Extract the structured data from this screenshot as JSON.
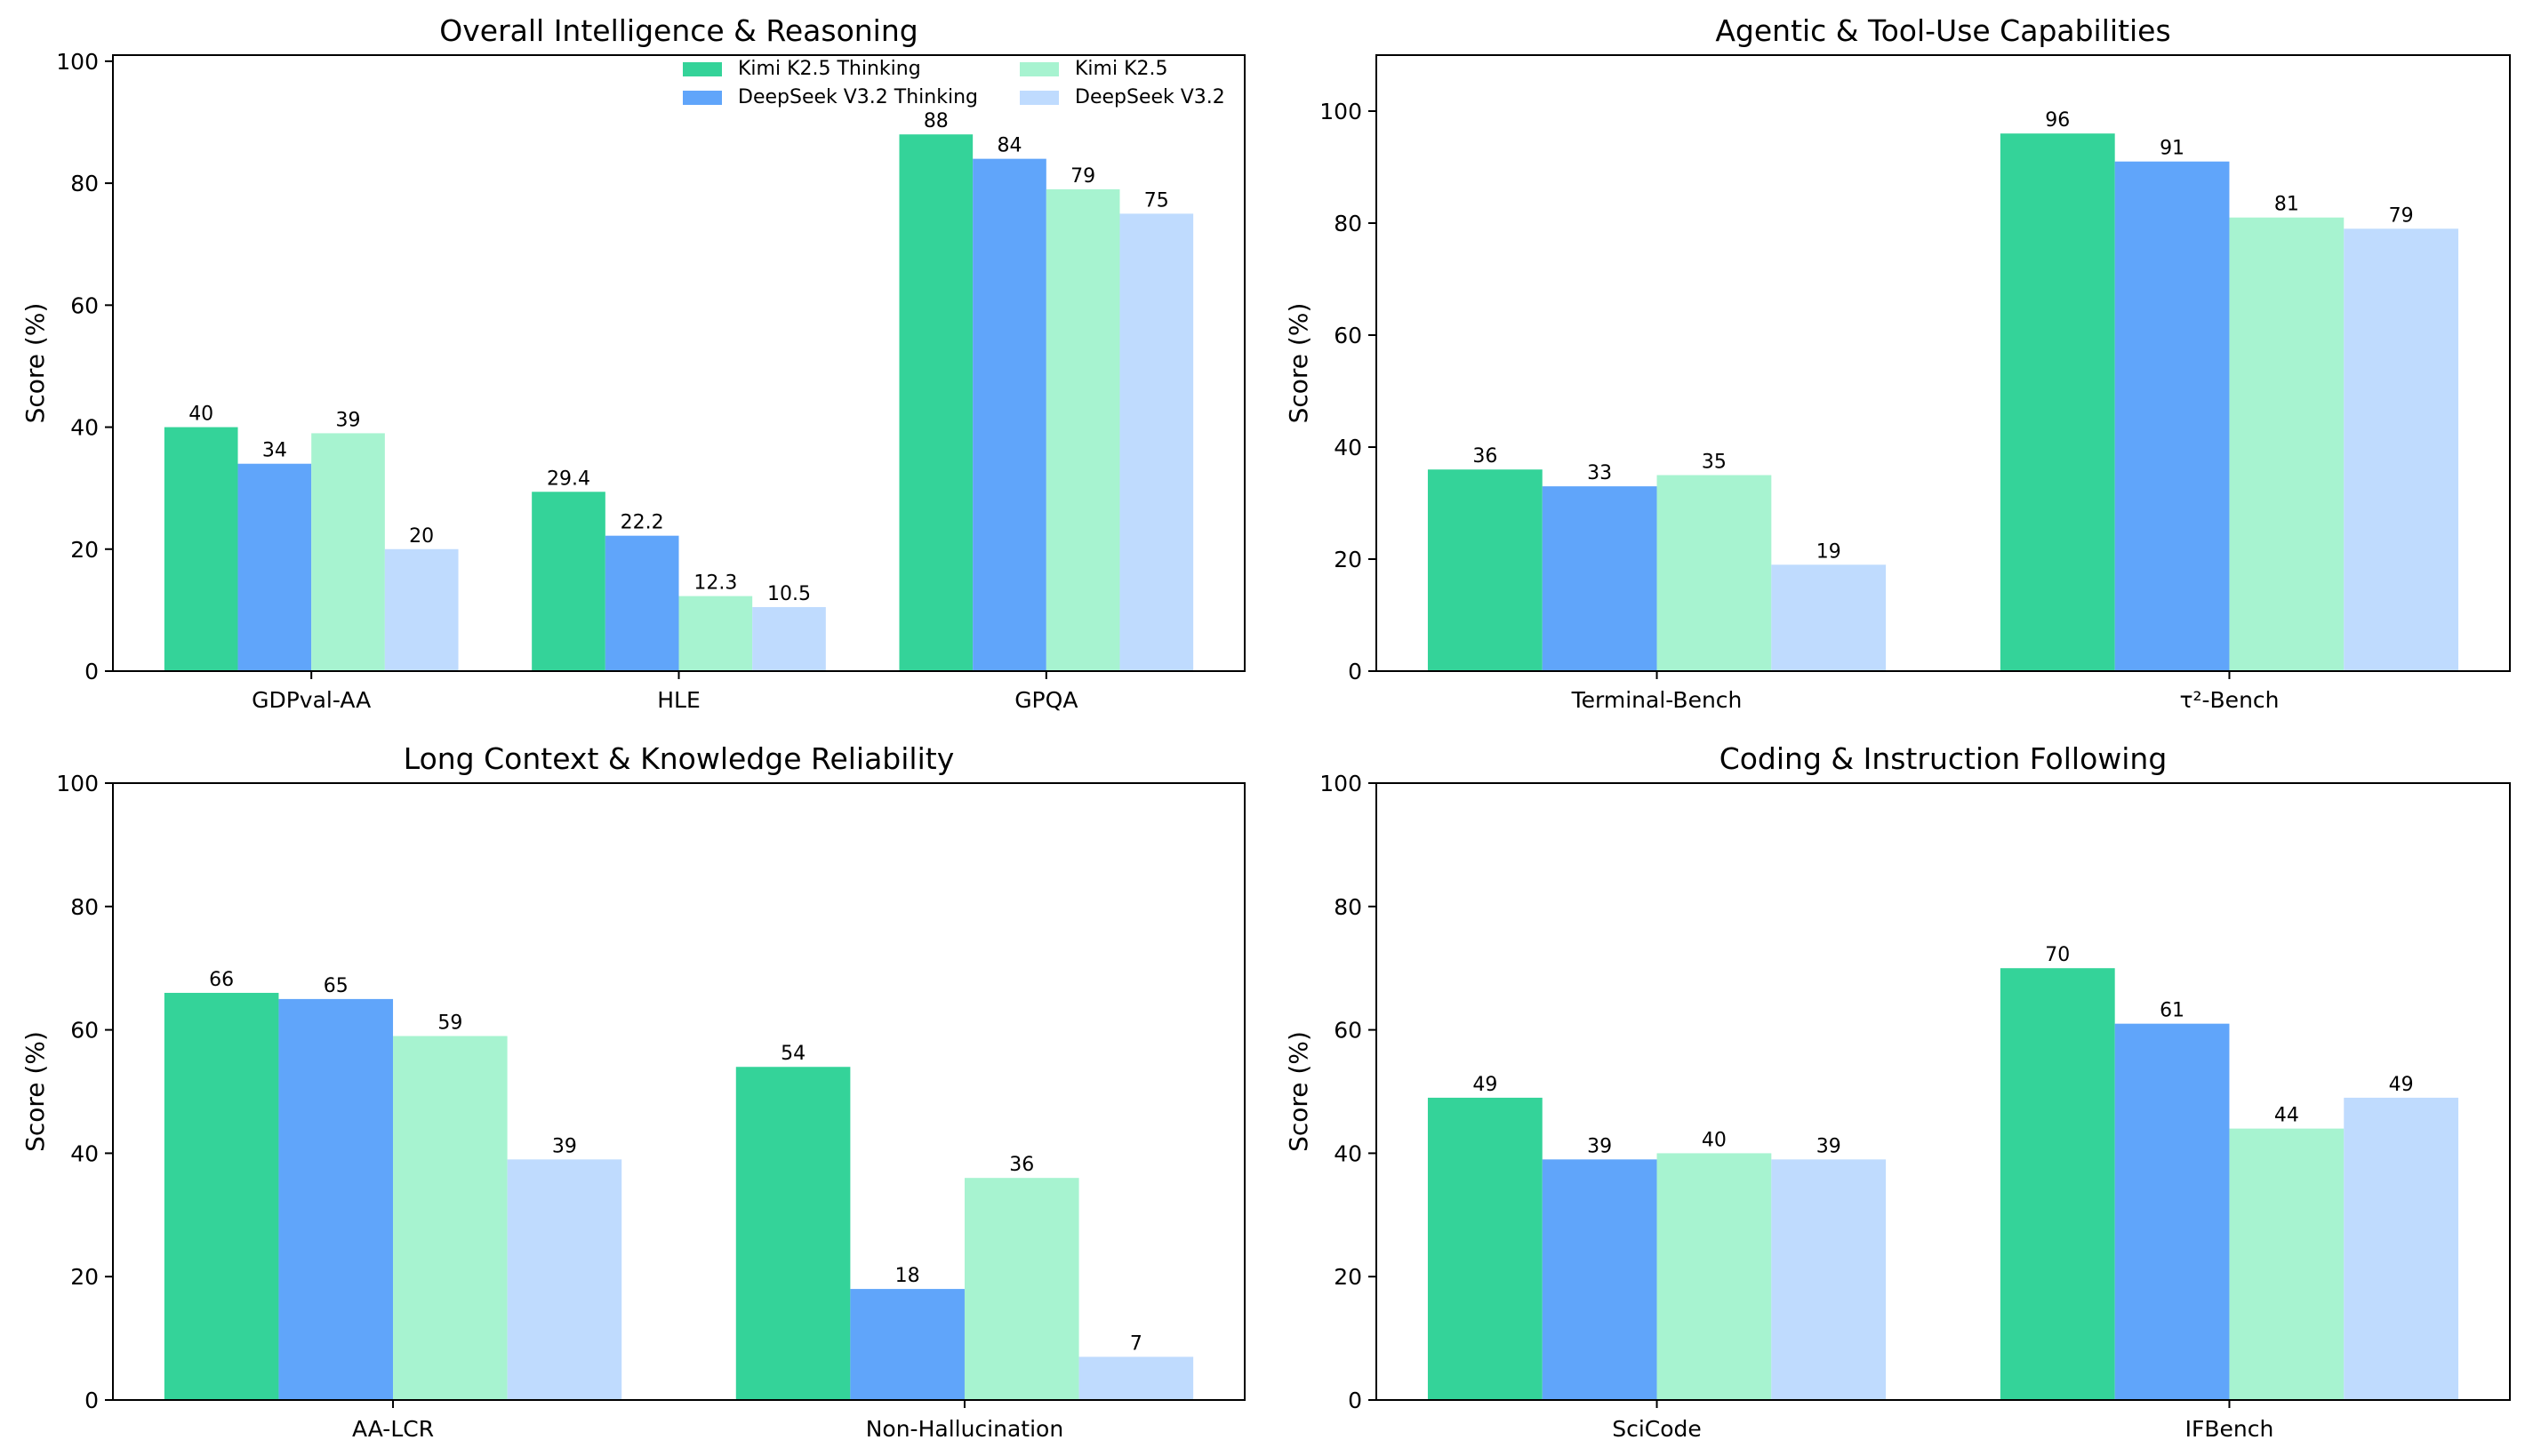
{
  "colors": {
    "kimi_thinking": "#34d399",
    "deepseek_thinking": "#60a5fa",
    "kimi": "#a7f3d0",
    "deepseek": "#bfdbfe"
  },
  "legend": [
    {
      "name": "Kimi K2.5 Thinking",
      "color_key": "kimi_thinking"
    },
    {
      "name": "DeepSeek V3.2 Thinking",
      "color_key": "deepseek_thinking"
    },
    {
      "name": "Kimi K2.5",
      "color_key": "kimi"
    },
    {
      "name": "DeepSeek V3.2",
      "color_key": "deepseek"
    }
  ],
  "chart_data": [
    {
      "type": "bar",
      "title": "Overall Intelligence & Reasoning",
      "ylabel": "Score (%)",
      "ylim": [
        0,
        101
      ],
      "yticks": [
        0,
        20,
        40,
        60,
        80,
        100
      ],
      "legend": "top-right",
      "categories": [
        "GDPval-AA",
        "HLE",
        "GPQA"
      ],
      "series": [
        {
          "name": "Kimi K2.5 Thinking",
          "values": [
            40,
            29.4,
            88
          ],
          "labels": [
            "40",
            "29.4",
            "88"
          ]
        },
        {
          "name": "DeepSeek V3.2 Thinking",
          "values": [
            34,
            22.2,
            84
          ],
          "labels": [
            "34",
            "22.2",
            "84"
          ]
        },
        {
          "name": "Kimi K2.5",
          "values": [
            39,
            12.3,
            79
          ],
          "labels": [
            "39",
            "12.3",
            "79"
          ]
        },
        {
          "name": "DeepSeek V3.2",
          "values": [
            20,
            10.5,
            75
          ],
          "labels": [
            "20",
            "10.5",
            "75"
          ]
        }
      ]
    },
    {
      "type": "bar",
      "title": "Agentic & Tool-Use Capabilities",
      "ylabel": "Score (%)",
      "ylim": [
        0,
        110
      ],
      "yticks": [
        0,
        20,
        40,
        60,
        80,
        100
      ],
      "categories": [
        "Terminal-Bench",
        "τ²-Bench"
      ],
      "series": [
        {
          "name": "Kimi K2.5 Thinking",
          "values": [
            36,
            96
          ],
          "labels": [
            "36",
            "96"
          ]
        },
        {
          "name": "DeepSeek V3.2 Thinking",
          "values": [
            33,
            91
          ],
          "labels": [
            "33",
            "91"
          ]
        },
        {
          "name": "Kimi K2.5",
          "values": [
            35,
            81
          ],
          "labels": [
            "35",
            "81"
          ]
        },
        {
          "name": "DeepSeek V3.2",
          "values": [
            19,
            79
          ],
          "labels": [
            "19",
            "79"
          ]
        }
      ]
    },
    {
      "type": "bar",
      "title": "Long Context & Knowledge Reliability",
      "ylabel": "Score (%)",
      "ylim": [
        0,
        100
      ],
      "yticks": [
        0,
        20,
        40,
        60,
        80,
        100
      ],
      "categories": [
        "AA-LCR",
        "Non-Hallucination"
      ],
      "series": [
        {
          "name": "Kimi K2.5 Thinking",
          "values": [
            66,
            54
          ],
          "labels": [
            "66",
            "54"
          ]
        },
        {
          "name": "DeepSeek V3.2 Thinking",
          "values": [
            65,
            18
          ],
          "labels": [
            "65",
            "18"
          ]
        },
        {
          "name": "Kimi K2.5",
          "values": [
            59,
            36
          ],
          "labels": [
            "59",
            "36"
          ]
        },
        {
          "name": "DeepSeek V3.2",
          "values": [
            39,
            7
          ],
          "labels": [
            "39",
            "7"
          ]
        }
      ]
    },
    {
      "type": "bar",
      "title": "Coding & Instruction Following",
      "ylabel": "Score (%)",
      "ylim": [
        0,
        100
      ],
      "yticks": [
        0,
        20,
        40,
        60,
        80,
        100
      ],
      "categories": [
        "SciCode",
        "IFBench"
      ],
      "series": [
        {
          "name": "Kimi K2.5 Thinking",
          "values": [
            49,
            70
          ],
          "labels": [
            "49",
            "70"
          ]
        },
        {
          "name": "DeepSeek V3.2 Thinking",
          "values": [
            39,
            61
          ],
          "labels": [
            "39",
            "61"
          ]
        },
        {
          "name": "Kimi K2.5",
          "values": [
            40,
            44
          ],
          "labels": [
            "40",
            "44"
          ]
        },
        {
          "name": "DeepSeek V3.2",
          "values": [
            39,
            49
          ],
          "labels": [
            "39",
            "49"
          ]
        }
      ]
    }
  ]
}
